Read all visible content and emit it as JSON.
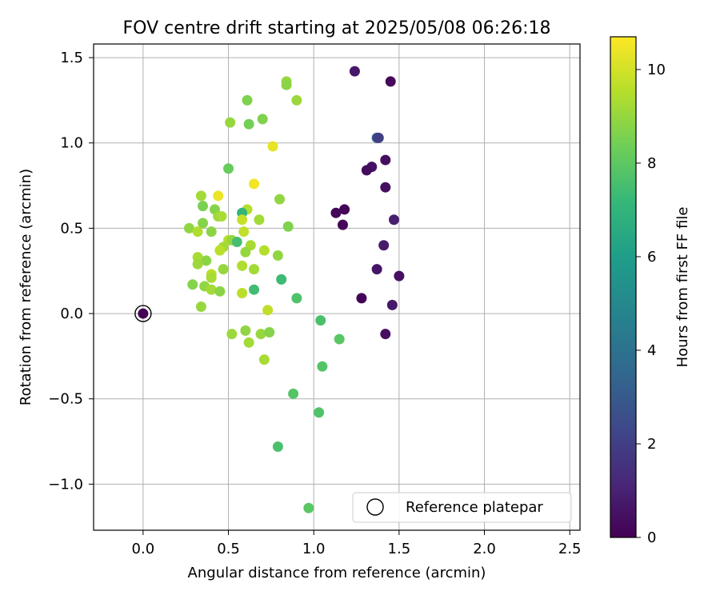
{
  "chart_data": {
    "type": "scatter",
    "title": "FOV centre drift starting at 2025/05/08 06:26:18",
    "xlabel": "Angular distance from reference (arcmin)",
    "ylabel": "Rotation from reference (arcmin)",
    "xlim": [
      -0.29,
      2.56
    ],
    "ylim": [
      -1.27,
      1.58
    ],
    "xticks": [
      0.0,
      0.5,
      1.0,
      1.5,
      2.0,
      2.5
    ],
    "xtick_labels": [
      "0.0",
      "0.5",
      "1.0",
      "1.5",
      "2.0",
      "2.5"
    ],
    "yticks": [
      -1.0,
      -0.5,
      0.0,
      0.5,
      1.0,
      1.5
    ],
    "ytick_labels": [
      "−1.0",
      "−0.5",
      "0.0",
      "0.5",
      "1.0",
      "1.5"
    ],
    "grid": true,
    "legend": {
      "location": "lower-right",
      "entries": [
        "Reference platepar"
      ]
    },
    "colorbar": {
      "label": "Hours from first FF file",
      "colormap": "viridis",
      "range": [
        0,
        10.7
      ],
      "ticks": [
        0,
        2,
        4,
        6,
        8,
        10
      ],
      "tick_labels": [
        "0",
        "2",
        "4",
        "6",
        "8",
        "10"
      ]
    },
    "reference_point": {
      "name": "Reference platepar",
      "x": 0.0,
      "y": 0.0,
      "c": 0.0
    },
    "series": [
      {
        "points": [
          {
            "x": 1.24,
            "y": 1.42,
            "c": 0.7
          },
          {
            "x": 1.45,
            "y": 1.36,
            "c": 0.2
          },
          {
            "x": 1.37,
            "y": 1.03,
            "c": 3.0
          },
          {
            "x": 1.38,
            "y": 1.03,
            "c": 2.0
          },
          {
            "x": 1.42,
            "y": 0.9,
            "c": 0.4
          },
          {
            "x": 1.34,
            "y": 0.86,
            "c": 0.5
          },
          {
            "x": 1.31,
            "y": 0.84,
            "c": 0.3
          },
          {
            "x": 1.42,
            "y": 0.74,
            "c": 0.4
          },
          {
            "x": 1.13,
            "y": 0.59,
            "c": 0.1
          },
          {
            "x": 1.18,
            "y": 0.61,
            "c": 0.1
          },
          {
            "x": 1.17,
            "y": 0.52,
            "c": 0.15
          },
          {
            "x": 1.47,
            "y": 0.55,
            "c": 0.9
          },
          {
            "x": 1.41,
            "y": 0.4,
            "c": 0.8
          },
          {
            "x": 1.37,
            "y": 0.26,
            "c": 0.6
          },
          {
            "x": 1.5,
            "y": 0.22,
            "c": 0.5
          },
          {
            "x": 1.28,
            "y": 0.09,
            "c": 0.1
          },
          {
            "x": 1.46,
            "y": 0.05,
            "c": 0.7
          },
          {
            "x": 1.42,
            "y": -0.12,
            "c": 0.4
          },
          {
            "x": 0.84,
            "y": 1.36,
            "c": 9.0
          },
          {
            "x": 0.84,
            "y": 1.34,
            "c": 8.8
          },
          {
            "x": 0.61,
            "y": 1.25,
            "c": 8.6
          },
          {
            "x": 0.9,
            "y": 1.25,
            "c": 9.1
          },
          {
            "x": 0.51,
            "y": 1.12,
            "c": 9.0
          },
          {
            "x": 0.62,
            "y": 1.11,
            "c": 8.4
          },
          {
            "x": 0.7,
            "y": 1.14,
            "c": 8.6
          },
          {
            "x": 0.76,
            "y": 0.98,
            "c": 10.3
          },
          {
            "x": 0.5,
            "y": 0.85,
            "c": 8.2
          },
          {
            "x": 0.65,
            "y": 0.76,
            "c": 10.5
          },
          {
            "x": 0.44,
            "y": 0.69,
            "c": 10.4
          },
          {
            "x": 0.34,
            "y": 0.69,
            "c": 9.2
          },
          {
            "x": 0.8,
            "y": 0.67,
            "c": 8.9
          },
          {
            "x": 0.35,
            "y": 0.63,
            "c": 8.5
          },
          {
            "x": 0.42,
            "y": 0.61,
            "c": 8.7
          },
          {
            "x": 0.61,
            "y": 0.61,
            "c": 9.5
          },
          {
            "x": 0.58,
            "y": 0.59,
            "c": 7.0
          },
          {
            "x": 0.44,
            "y": 0.57,
            "c": 9.1
          },
          {
            "x": 0.46,
            "y": 0.57,
            "c": 9.3
          },
          {
            "x": 0.58,
            "y": 0.55,
            "c": 9.8
          },
          {
            "x": 0.68,
            "y": 0.55,
            "c": 9.2
          },
          {
            "x": 0.35,
            "y": 0.53,
            "c": 8.7
          },
          {
            "x": 0.27,
            "y": 0.5,
            "c": 8.9
          },
          {
            "x": 0.32,
            "y": 0.48,
            "c": 9.4
          },
          {
            "x": 0.4,
            "y": 0.48,
            "c": 8.8
          },
          {
            "x": 0.59,
            "y": 0.48,
            "c": 9.7
          },
          {
            "x": 0.85,
            "y": 0.51,
            "c": 8.6
          },
          {
            "x": 0.5,
            "y": 0.43,
            "c": 9.5
          },
          {
            "x": 0.52,
            "y": 0.43,
            "c": 9.0
          },
          {
            "x": 0.55,
            "y": 0.42,
            "c": 7.5
          },
          {
            "x": 0.47,
            "y": 0.39,
            "c": 9.2
          },
          {
            "x": 0.45,
            "y": 0.37,
            "c": 9.6
          },
          {
            "x": 0.63,
            "y": 0.4,
            "c": 9.3
          },
          {
            "x": 0.6,
            "y": 0.36,
            "c": 9.0
          },
          {
            "x": 0.71,
            "y": 0.37,
            "c": 9.5
          },
          {
            "x": 0.79,
            "y": 0.34,
            "c": 8.9
          },
          {
            "x": 0.32,
            "y": 0.33,
            "c": 9.3
          },
          {
            "x": 0.37,
            "y": 0.31,
            "c": 8.8
          },
          {
            "x": 0.32,
            "y": 0.29,
            "c": 9.1
          },
          {
            "x": 0.58,
            "y": 0.28,
            "c": 9.4
          },
          {
            "x": 0.47,
            "y": 0.26,
            "c": 9.0
          },
          {
            "x": 0.65,
            "y": 0.26,
            "c": 9.2
          },
          {
            "x": 0.4,
            "y": 0.23,
            "c": 9.6
          },
          {
            "x": 0.4,
            "y": 0.21,
            "c": 9.3
          },
          {
            "x": 0.29,
            "y": 0.17,
            "c": 8.7
          },
          {
            "x": 0.36,
            "y": 0.16,
            "c": 8.9
          },
          {
            "x": 0.4,
            "y": 0.14,
            "c": 9.2
          },
          {
            "x": 0.45,
            "y": 0.13,
            "c": 8.8
          },
          {
            "x": 0.58,
            "y": 0.12,
            "c": 9.6
          },
          {
            "x": 0.65,
            "y": 0.14,
            "c": 7.4
          },
          {
            "x": 0.81,
            "y": 0.2,
            "c": 7.3
          },
          {
            "x": 0.9,
            "y": 0.09,
            "c": 7.7
          },
          {
            "x": 0.34,
            "y": 0.04,
            "c": 9.0
          },
          {
            "x": 0.73,
            "y": 0.02,
            "c": 9.7
          },
          {
            "x": 1.04,
            "y": -0.04,
            "c": 7.6
          },
          {
            "x": 0.52,
            "y": -0.12,
            "c": 9.1
          },
          {
            "x": 0.6,
            "y": -0.1,
            "c": 8.9
          },
          {
            "x": 0.62,
            "y": -0.17,
            "c": 9.2
          },
          {
            "x": 0.69,
            "y": -0.12,
            "c": 9.0
          },
          {
            "x": 0.74,
            "y": -0.11,
            "c": 8.7
          },
          {
            "x": 1.15,
            "y": -0.15,
            "c": 7.9
          },
          {
            "x": 0.71,
            "y": -0.27,
            "c": 9.3
          },
          {
            "x": 1.05,
            "y": -0.31,
            "c": 7.8
          },
          {
            "x": 0.88,
            "y": -0.47,
            "c": 7.8
          },
          {
            "x": 1.03,
            "y": -0.58,
            "c": 7.7
          },
          {
            "x": 0.79,
            "y": -0.78,
            "c": 7.6
          },
          {
            "x": 0.97,
            "y": -1.14,
            "c": 7.9
          }
        ]
      }
    ]
  }
}
